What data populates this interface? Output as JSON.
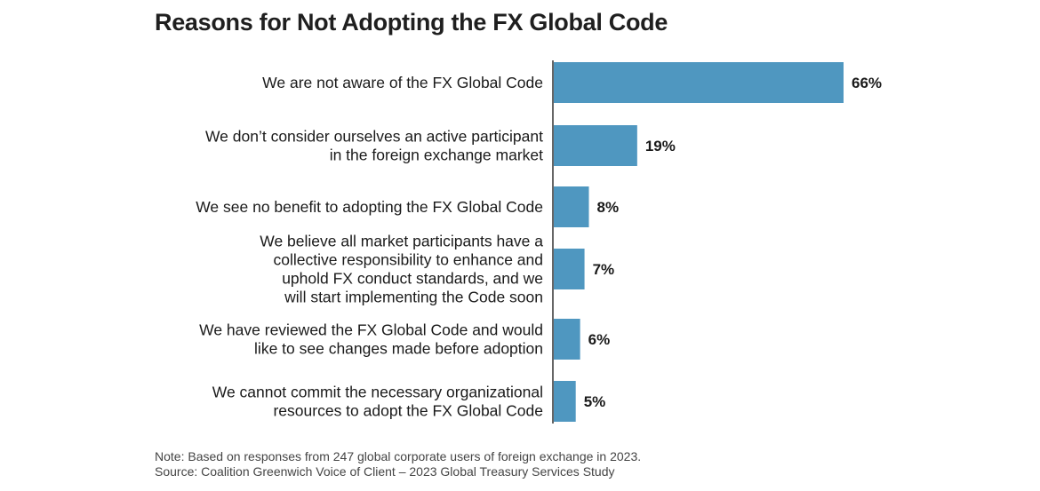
{
  "chart_data": {
    "type": "bar",
    "orientation": "horizontal",
    "title": "Reasons for Not Adopting the FX Global Code",
    "xlabel": "",
    "ylabel": "",
    "xlim": [
      0,
      66
    ],
    "grid": false,
    "legend": null,
    "bar_color": "#4f97c0",
    "categories": [
      [
        "We are not aware of the FX Global Code"
      ],
      [
        "We don’t consider ourselves an active participant",
        "in the foreign exchange market"
      ],
      [
        "We see no benefit to adopting the FX Global Code"
      ],
      [
        "We believe all market participants have a",
        "collective responsibility to enhance and",
        "uphold FX conduct standards, and we",
        "will start implementing the Code soon"
      ],
      [
        "We have reviewed the FX Global Code and would",
        "like to see changes made before adoption"
      ],
      [
        "We cannot commit the necessary organizational",
        "resources to adopt the FX Global Code"
      ]
    ],
    "values": [
      66,
      19,
      8,
      7,
      6,
      5
    ],
    "value_labels": [
      "66%",
      "19%",
      "8%",
      "7%",
      "6%",
      "5%"
    ]
  },
  "footer": {
    "note": "Note: Based on responses from 247 global corporate users of foreign exchange in 2023.",
    "source": "Source: Coalition Greenwich Voice of Client – 2023 Global Treasury Services Study"
  }
}
